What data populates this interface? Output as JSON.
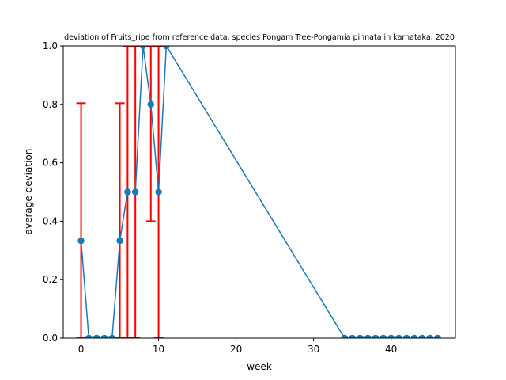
{
  "chart_data": {
    "type": "line",
    "title": "deviation of Fruits_ripe from reference data, species Pongam Tree-Pongamia pinnata in karnataka, 2020",
    "xlabel": "week",
    "ylabel": "average deviation",
    "xlim": [
      -2.3,
      48.3
    ],
    "ylim": [
      0,
      1
    ],
    "xticks": [
      0,
      10,
      20,
      30,
      40
    ],
    "yticks": [
      0.0,
      0.2,
      0.4,
      0.6,
      0.8,
      1.0
    ],
    "xtick_labels": [
      "0",
      "10",
      "20",
      "30",
      "40"
    ],
    "ytick_labels": [
      "0.0",
      "0.2",
      "0.4",
      "0.6",
      "0.8",
      "1.0"
    ],
    "grid": false,
    "series": [
      {
        "color": "#1f77b4",
        "x": [
          0,
          1,
          2,
          3,
          4,
          5,
          6,
          7,
          8,
          9,
          10,
          11,
          34,
          35,
          36,
          37,
          38,
          39,
          40,
          41,
          42,
          43,
          44,
          45,
          46
        ],
        "y": [
          0.333,
          0,
          0,
          0,
          0,
          0.333,
          0.5,
          0.5,
          1.0,
          0.8,
          0.5,
          1.0,
          0,
          0,
          0,
          0,
          0,
          0,
          0,
          0,
          0,
          0,
          0,
          0,
          0
        ],
        "error_color": "#ff0000",
        "yerr": [
          0.471,
          0,
          0,
          0,
          0,
          0.471,
          0.5,
          0.5,
          0,
          0.4,
          0.5,
          0,
          0,
          0,
          0,
          0,
          0,
          0,
          0,
          0,
          0,
          0,
          0,
          0,
          0
        ]
      }
    ]
  }
}
